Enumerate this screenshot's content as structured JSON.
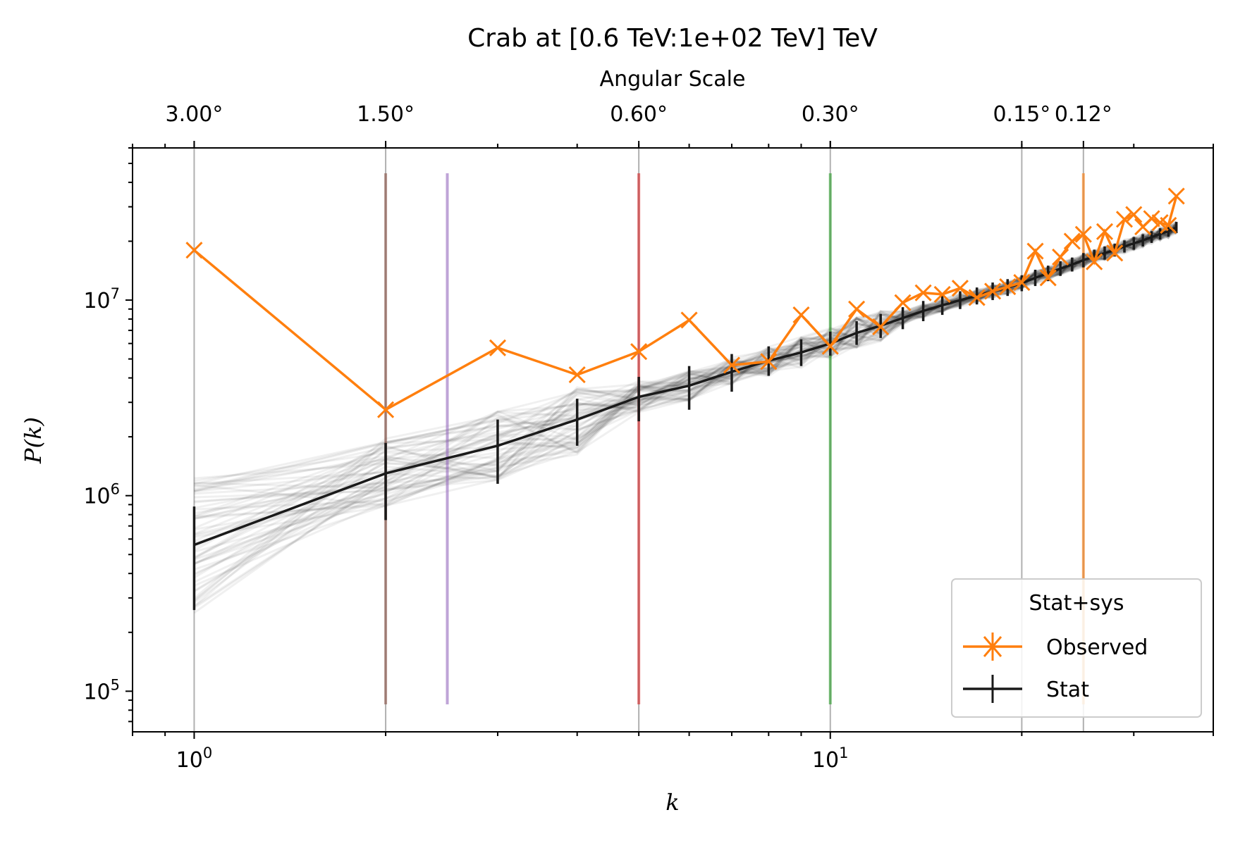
{
  "chart_data": {
    "type": "line",
    "title": "Crab at [0.6 TeV:1e+02 TeV] TeV",
    "xlabel": "k",
    "ylabel": "P(k)",
    "x_scale": "log",
    "y_scale": "log",
    "xlim": [
      0.8,
      40
    ],
    "ylim": [
      62000,
      60000000
    ],
    "x_tick_labels": [
      "10^0",
      "10^1"
    ],
    "y_tick_labels": [
      "10^5",
      "10^6",
      "10^7"
    ],
    "top_axis": {
      "label": "Angular Scale",
      "ticks": [
        {
          "k": 1,
          "label": "3.00°"
        },
        {
          "k": 2,
          "label": "1.50°"
        },
        {
          "k": 5,
          "label": "0.60°"
        },
        {
          "k": 10,
          "label": "0.30°"
        },
        {
          "k": 20,
          "label": "0.15°"
        },
        {
          "k": 25,
          "label": "0.12°"
        }
      ]
    },
    "grid": "vertical lines at top-axis ticks",
    "vertical_markers": [
      {
        "k": 2,
        "color": "#8c564b"
      },
      {
        "k": 2.5,
        "color": "#9467bd"
      },
      {
        "k": 5,
        "color": "#d62728"
      },
      {
        "k": 10,
        "color": "#2ca02c"
      },
      {
        "k": 25,
        "color": "#ff7f0e"
      }
    ],
    "legend": {
      "title": "Stat+sys",
      "placement": "lower right",
      "entries": [
        {
          "label": "Observed",
          "color": "#ff7f0e"
        },
        {
          "label": "Stat",
          "color": "#1a1a1a"
        }
      ]
    },
    "series": [
      {
        "name": "Observed",
        "color": "#ff7f0e",
        "marker": "x",
        "x": [
          1,
          2,
          3,
          4,
          5,
          6,
          7,
          8,
          9,
          10,
          11,
          12,
          13,
          14,
          15,
          16,
          17,
          18,
          19,
          20,
          21,
          22,
          23,
          24,
          25,
          26,
          27,
          28,
          29,
          30,
          31,
          32,
          33,
          34,
          35
        ],
        "y": [
          18000000,
          2750000,
          5700000,
          4150000,
          5450000,
          7900000,
          4650000,
          4850000,
          8400000,
          5800000,
          9000000,
          7300000,
          9700000,
          10900000,
          10700000,
          11500000,
          10300000,
          11100000,
          11700000,
          12300000,
          17800000,
          13000000,
          16600000,
          20000000,
          21700000,
          15700000,
          22400000,
          17400000,
          25900000,
          27400000,
          23700000,
          26100000,
          24900000,
          24100000,
          34000000
        ]
      },
      {
        "name": "Stat",
        "color": "#1a1a1a",
        "x": [
          1,
          2,
          3,
          4,
          5,
          6,
          7,
          8,
          9,
          10,
          11,
          12,
          13,
          14,
          15,
          16,
          17,
          18,
          19,
          20,
          21,
          22,
          23,
          24,
          25,
          26,
          27,
          28,
          29,
          30,
          31,
          32,
          33,
          34,
          35
        ],
        "y": [
          560000,
          1300000,
          1800000,
          2450000,
          3200000,
          3650000,
          4300000,
          4900000,
          5400000,
          6000000,
          6800000,
          7400000,
          8100000,
          8800000,
          9400000,
          10000000,
          10500000,
          11100000,
          11600000,
          12200000,
          13000000,
          13700000,
          14500000,
          15200000,
          16000000,
          16700000,
          17400000,
          18000000,
          18800000,
          19500000,
          20200000,
          21000000,
          21800000,
          22500000,
          23500000
        ],
        "yerr_low": [
          300000,
          550000,
          650000,
          650000,
          800000,
          900000,
          900000,
          800000,
          800000,
          800000,
          900000,
          1000000,
          1000000,
          1000000,
          1000000,
          1000000,
          1000000,
          1100000,
          1100000,
          1100000,
          1200000,
          1200000,
          1200000,
          1200000,
          1300000,
          1300000,
          1300000,
          1300000,
          1300000,
          1400000,
          1400000,
          1400000,
          1400000,
          1400000,
          1500000
        ],
        "yerr_high": [
          320000,
          560000,
          650000,
          680000,
          850000,
          950000,
          1000000,
          900000,
          900000,
          900000,
          1000000,
          1100000,
          1100000,
          1100000,
          1100000,
          1100000,
          1100000,
          1200000,
          1200000,
          1200000,
          1300000,
          1300000,
          1300000,
          1300000,
          1400000,
          1400000,
          1400000,
          1400000,
          1400000,
          1500000,
          1500000,
          1500000,
          1500000,
          1500000,
          1600000
        ]
      }
    ],
    "background_realizations": {
      "count": 60,
      "color": "#000000",
      "alpha": 0.06
    }
  }
}
